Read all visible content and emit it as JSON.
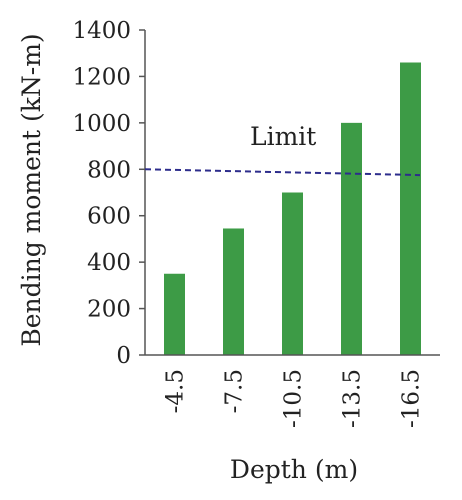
{
  "chart_data": {
    "type": "bar",
    "categories": [
      "-4.5",
      "-7.5",
      "-10.5",
      "-13.5",
      "-16.5"
    ],
    "values": [
      350,
      545,
      700,
      1000,
      1260
    ],
    "title": "",
    "xlabel": "Depth (m)",
    "ylabel": "Bending moment (kN-m)",
    "ylim": [
      0,
      1400
    ],
    "yticks": [
      "0",
      "200",
      "400",
      "600",
      "800",
      "1000",
      "1200",
      "1400"
    ],
    "grid": false,
    "legend": "none",
    "bar_color": "#3d9b46",
    "limit_line": {
      "label": "Limit",
      "start_value": 800,
      "end_value": 775,
      "color": "#2d2d8c",
      "style": "dashed"
    }
  }
}
